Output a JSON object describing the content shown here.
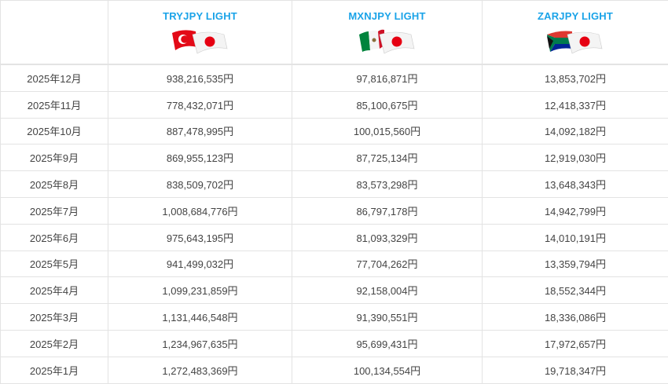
{
  "table": {
    "columns": [
      {
        "label": "",
        "flags": []
      },
      {
        "label": "TRYJPY LIGHT",
        "flags": [
          "turkey-flag",
          "japan-flag"
        ]
      },
      {
        "label": "MXNJPY LIGHT",
        "flags": [
          "mexico-flag",
          "japan-flag"
        ]
      },
      {
        "label": "ZARJPY LIGHT",
        "flags": [
          "south-africa-flag",
          "japan-flag"
        ]
      }
    ],
    "rows": [
      [
        "2025年12月",
        "938,216,535円",
        "97,816,871円",
        "13,853,702円"
      ],
      [
        "2025年11月",
        "778,432,071円",
        "85,100,675円",
        "12,418,337円"
      ],
      [
        "2025年10月",
        "887,478,995円",
        "100,015,560円",
        "14,092,182円"
      ],
      [
        "2025年9月",
        "869,955,123円",
        "87,725,134円",
        "12,919,030円"
      ],
      [
        "2025年8月",
        "838,509,702円",
        "83,573,298円",
        "13,648,343円"
      ],
      [
        "2025年7月",
        "1,008,684,776円",
        "86,797,178円",
        "14,942,799円"
      ],
      [
        "2025年6月",
        "975,643,195円",
        "81,093,329円",
        "14,010,191円"
      ],
      [
        "2025年5月",
        "941,499,032円",
        "77,704,262円",
        "13,359,794円"
      ],
      [
        "2025年4月",
        "1,099,231,859円",
        "92,158,004円",
        "18,552,344円"
      ],
      [
        "2025年3月",
        "1,131,446,548円",
        "91,390,551円",
        "18,336,086円"
      ],
      [
        "2025年2月",
        "1,234,967,635円",
        "95,699,431円",
        "17,972,657円"
      ],
      [
        "2025年1月",
        "1,272,483,369円",
        "100,134,554円",
        "19,718,347円"
      ]
    ]
  },
  "colors": {
    "header_text": "#1aa3e8",
    "body_text": "#444444",
    "grid": "#e3e3e3"
  }
}
